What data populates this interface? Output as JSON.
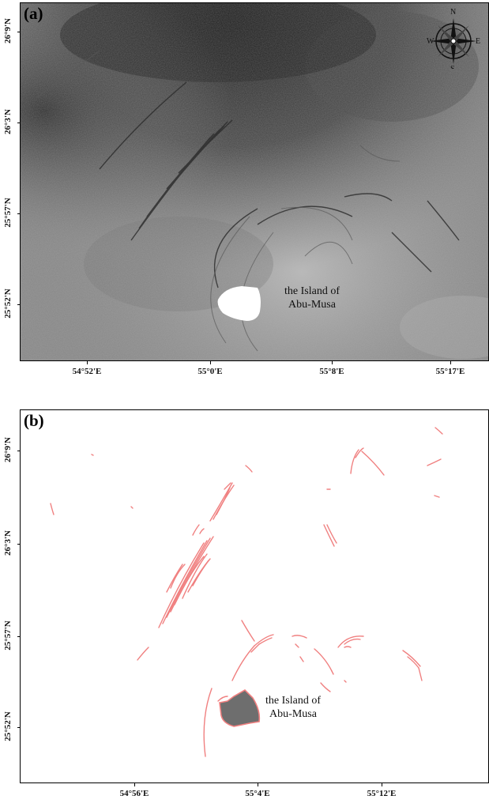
{
  "panel_a": {
    "tag": "(a)",
    "y_labels": [
      "26°9'N",
      "26°3'N",
      "25°57'N",
      "25°52'N"
    ],
    "x_labels": [
      "54°52'E",
      "55°0'E",
      "55°8'E",
      "55°17'E"
    ],
    "island_label_line1": "the Island of",
    "island_label_line2": "Abu-Musa",
    "compass": {
      "n": "N",
      "s": "S",
      "e": "E",
      "w": "W"
    }
  },
  "panel_b": {
    "tag": "(b)",
    "y_labels": [
      "26°9'N",
      "26°3'N",
      "25°57'N",
      "25°52'N"
    ],
    "x_labels": [
      "54°56'E",
      "55°4'E",
      "55°12'E"
    ],
    "island_label_line1": "the Island of",
    "island_label_line2": "Abu-Musa"
  },
  "colors": {
    "sar_base": "#7d7d7d",
    "sar_dark": "#2a2a2a",
    "slick_line": "#f08080",
    "island_fill": "#6e6e6e",
    "island_bright": "#ffffff"
  }
}
